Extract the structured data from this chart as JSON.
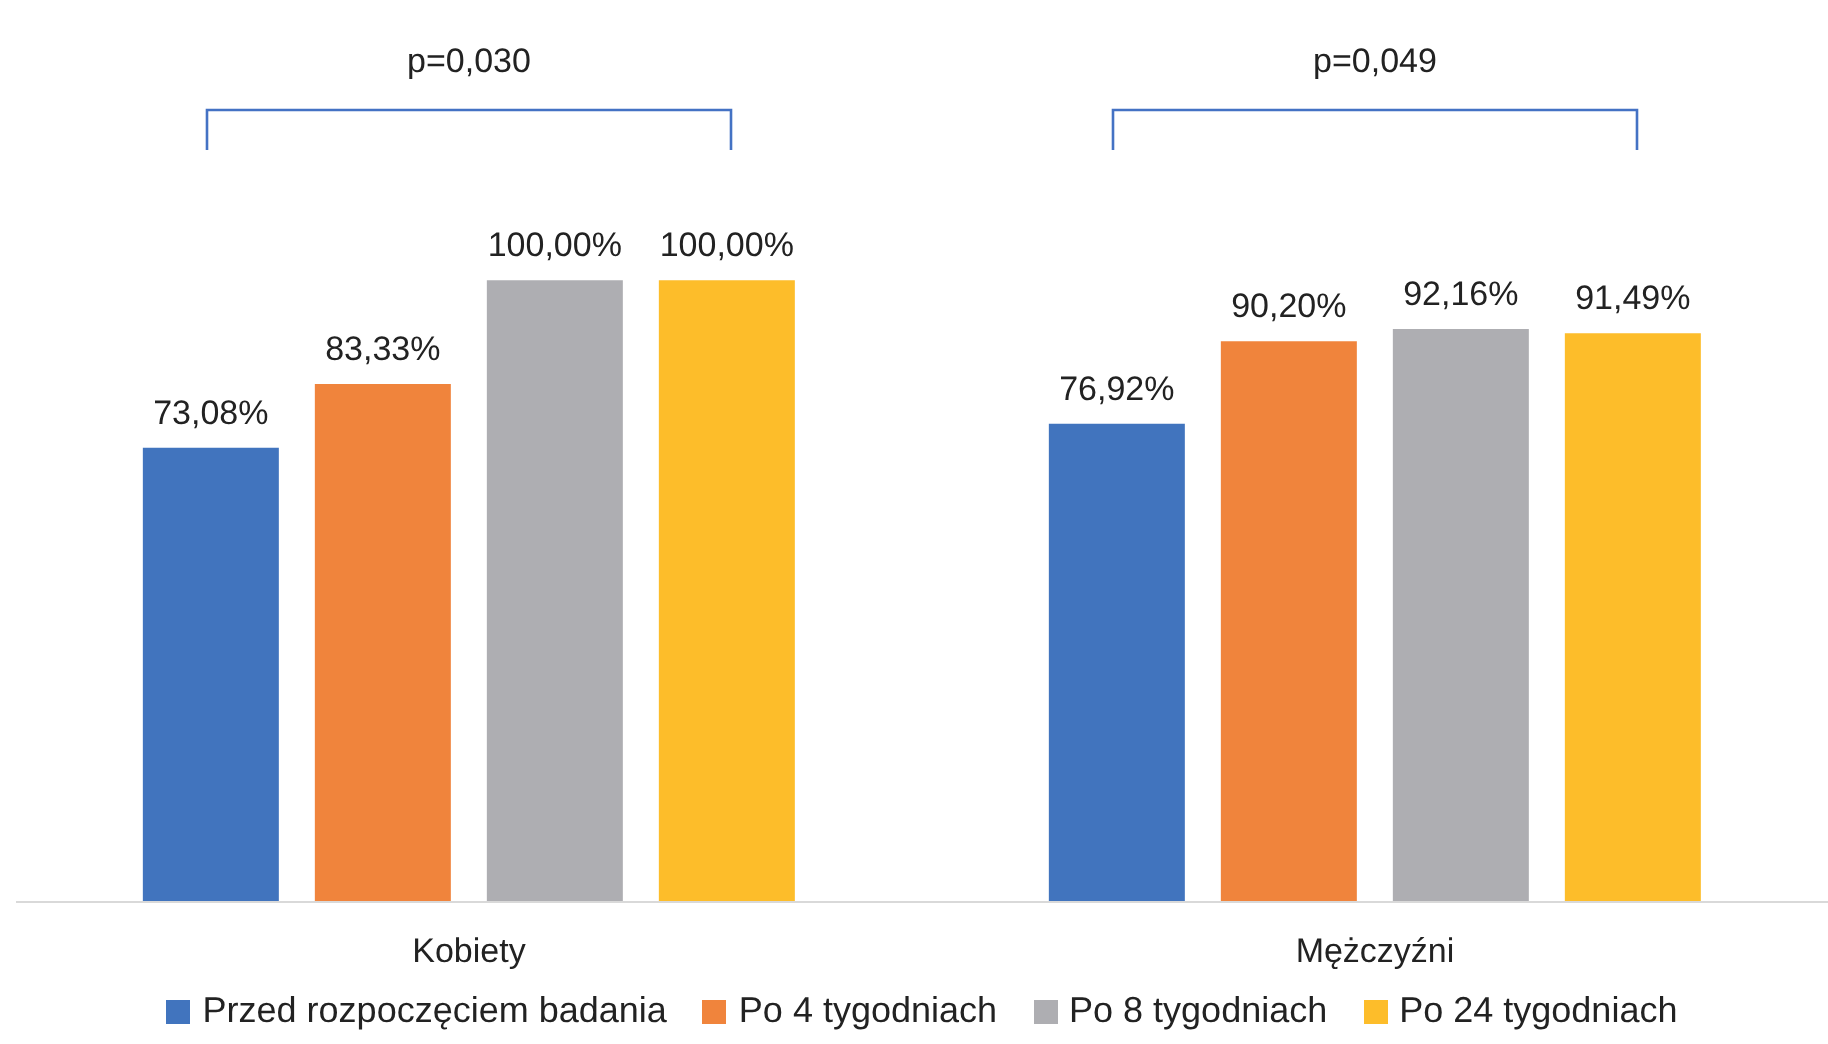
{
  "chart_data": {
    "type": "bar",
    "categories": [
      "Kobiety",
      "Mężczyźni"
    ],
    "series": [
      {
        "name": "Przed rozpoczęciem badania",
        "color": "#4174be",
        "values": [
          73.08,
          76.92
        ],
        "value_labels": [
          "73,08%",
          "76,92%"
        ]
      },
      {
        "name": "Po 4 tygodniach",
        "color": "#f0843c",
        "values": [
          83.33,
          90.2
        ],
        "value_labels": [
          "83,33%",
          "90,20%"
        ]
      },
      {
        "name": "Po 8 tygodniach",
        "color": "#aeaeb2",
        "values": [
          100,
          92.16
        ],
        "value_labels": [
          "100,00%",
          "92,16%"
        ]
      },
      {
        "name": "Po 24 tygodniach",
        "color": "#fdbd2a",
        "values": [
          100,
          91.49
        ],
        "value_labels": [
          "100,00%",
          "91,49%"
        ]
      }
    ],
    "grid": false,
    "legend": "bottom",
    "annotations": [
      "p=0,030",
      "p=0,049"
    ]
  }
}
